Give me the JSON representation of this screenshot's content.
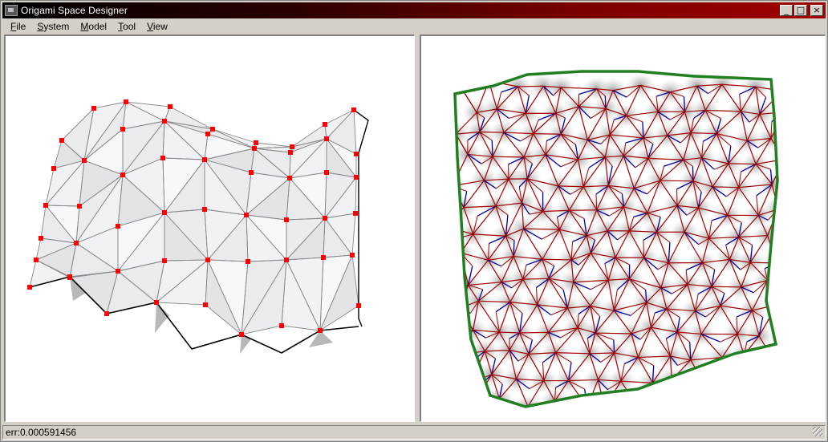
{
  "window": {
    "title": "Origami Space Designer",
    "minimize_glyph": "_",
    "maximize_glyph": "□",
    "close_glyph": "×"
  },
  "menu": {
    "items": [
      {
        "label": "File",
        "accel": "F",
        "rest": "ile"
      },
      {
        "label": "System",
        "accel": "S",
        "rest": "ystem"
      },
      {
        "label": "Model",
        "accel": "M",
        "rest": "odel"
      },
      {
        "label": "Tool",
        "accel": "T",
        "rest": "ool"
      },
      {
        "label": "View",
        "accel": "V",
        "rest": "iew"
      }
    ]
  },
  "views": {
    "left": {
      "icon": "folded-model-3d-view"
    },
    "right": {
      "icon": "crease-pattern-2d-view"
    }
  },
  "colors": {
    "vertex_marker": "#ff0000",
    "mountain_crease": "#a00000",
    "valley_crease": "#0000a0",
    "boundary": "#208020",
    "mesh_edge": "#888888"
  },
  "status": {
    "text": "err:0.000591456"
  }
}
